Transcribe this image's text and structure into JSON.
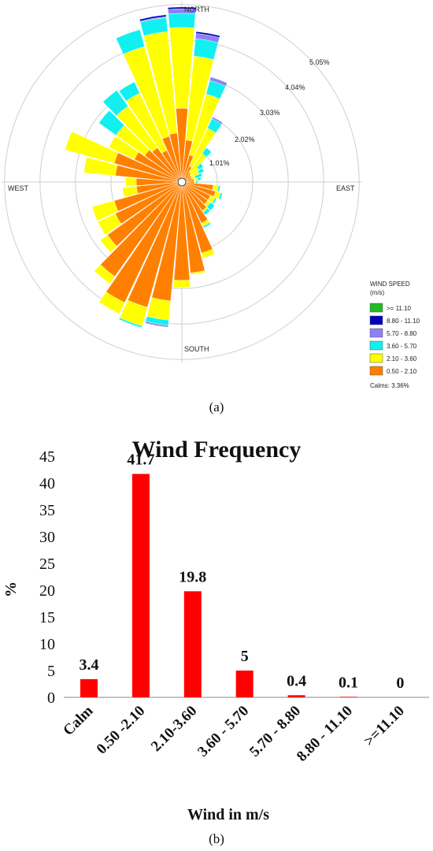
{
  "rose": {
    "directions": {
      "north": "NORTH",
      "south": "SOUTH",
      "east": "EAST",
      "west": "WEST"
    },
    "ring_labels": [
      "1.01%",
      "2.02%",
      "3.03%",
      "4.04%",
      "5.05%"
    ],
    "legend": {
      "title": "WIND SPEED",
      "unit": "(m/s)",
      "calms": "Calms: 3.36%",
      "entries": [
        {
          "label": ">= 11.10",
          "color": "#22bb22"
        },
        {
          "label": "8.80 - 11.10",
          "color": "#0000bb"
        },
        {
          "label": "5.70 - 8.80",
          "color": "#8c82f2"
        },
        {
          "label": "3.60 - 5.70",
          "color": "#11f0f0"
        },
        {
          "label": "2.10 - 3.60",
          "color": "#ffff00"
        },
        {
          "label": "0.50 - 2.10",
          "color": "#ff8000"
        }
      ]
    },
    "caption": "(a)"
  },
  "chart_data": [
    {
      "type": "wind-rose",
      "ring_values": [
        1.01,
        2.02,
        3.03,
        4.04,
        5.05
      ],
      "sector_bearings_deg": [
        0,
        10,
        20,
        30,
        40,
        50,
        60,
        70,
        80,
        90,
        100,
        110,
        120,
        130,
        140,
        150,
        160,
        170,
        180,
        190,
        200,
        210,
        220,
        230,
        240,
        250,
        260,
        270,
        280,
        290,
        300,
        310,
        320,
        330,
        340,
        350
      ],
      "bins": [
        "0.50 - 2.10",
        "2.10 - 3.60",
        "3.60 - 5.70",
        "5.70 - 8.80",
        "8.80 - 11.10",
        ">= 11.10"
      ],
      "cumulative_percent": [
        [
          2.1,
          4.4,
          4.8,
          4.93,
          4.98,
          4.98
        ],
        [
          1.2,
          3.6,
          4.1,
          4.25,
          4.3,
          4.3
        ],
        [
          0.8,
          2.6,
          3.0,
          3.1,
          3.1,
          3.1
        ],
        [
          0.5,
          1.7,
          2.0,
          2.05,
          2.05,
          2.05
        ],
        [
          0.35,
          1.0,
          1.2,
          1.2,
          1.2,
          1.2
        ],
        [
          0.3,
          0.6,
          0.75,
          0.75,
          0.75,
          0.75
        ],
        [
          0.3,
          0.55,
          0.7,
          0.7,
          0.7,
          0.7
        ],
        [
          0.3,
          0.4,
          0.6,
          0.6,
          0.6,
          0.6
        ],
        [
          0.35,
          0.45,
          0.55,
          0.55,
          0.55,
          0.55
        ],
        [
          0.35,
          0.4,
          0.45,
          0.45,
          0.45,
          0.45
        ],
        [
          0.9,
          1.05,
          1.1,
          1.1,
          1.1,
          1.1
        ],
        [
          1.0,
          1.15,
          1.2,
          1.2,
          1.2,
          1.2
        ],
        [
          0.9,
          1.05,
          1.1,
          1.1,
          1.1,
          1.1
        ],
        [
          0.9,
          1.0,
          1.15,
          1.15,
          1.15,
          1.15
        ],
        [
          1.0,
          1.05,
          1.15,
          1.15,
          1.15,
          1.15
        ],
        [
          1.3,
          1.4,
          1.45,
          1.45,
          1.45,
          1.45
        ],
        [
          2.1,
          2.25,
          2.25,
          2.25,
          2.25,
          2.25
        ],
        [
          2.6,
          2.65,
          2.65,
          2.65,
          2.65,
          2.65
        ],
        [
          2.8,
          3.0,
          3.0,
          3.0,
          3.0,
          3.0
        ],
        [
          3.4,
          3.95,
          4.1,
          4.15,
          4.15,
          4.15
        ],
        [
          3.7,
          4.25,
          4.3,
          4.3,
          4.3,
          4.3
        ],
        [
          3.8,
          4.15,
          4.15,
          4.15,
          4.15,
          4.15
        ],
        [
          3.3,
          3.55,
          3.55,
          3.55,
          3.55,
          3.55
        ],
        [
          2.6,
          2.85,
          2.85,
          2.85,
          2.85,
          2.85
        ],
        [
          2.1,
          2.65,
          2.65,
          2.65,
          2.65,
          2.65
        ],
        [
          2.0,
          2.65,
          2.65,
          2.65,
          2.65,
          2.65
        ],
        [
          1.3,
          1.7,
          1.7,
          1.7,
          1.7,
          1.7
        ],
        [
          1.3,
          1.6,
          1.6,
          1.6,
          1.6,
          1.6
        ],
        [
          1.9,
          2.8,
          2.8,
          2.8,
          2.8,
          2.8
        ],
        [
          2.0,
          3.45,
          3.45,
          3.45,
          3.45,
          3.45
        ],
        [
          1.5,
          2.3,
          2.3,
          2.3,
          2.3,
          2.3
        ],
        [
          1.3,
          2.3,
          2.9,
          2.9,
          2.9,
          2.9
        ],
        [
          1.2,
          2.65,
          3.2,
          3.2,
          3.2,
          3.2
        ],
        [
          1.0,
          2.8,
          3.15,
          3.15,
          3.15,
          3.15
        ],
        [
          1.35,
          4.0,
          4.5,
          4.5,
          4.5,
          4.5
        ],
        [
          1.4,
          4.3,
          4.7,
          4.73,
          4.78,
          4.78
        ]
      ]
    },
    {
      "type": "bar",
      "title": "Wind Frequency",
      "xlabel": "Wind in m/s",
      "ylabel": "%",
      "categories": [
        "Calm",
        "0.50 -2.10",
        "2.10-3.60",
        "3.60 - 5.70",
        "5.70 - 8.80",
        "8.80 - 11.10",
        ">=11.10"
      ],
      "values": [
        3.4,
        41.7,
        19.8,
        5,
        0.4,
        0.1,
        0
      ],
      "value_labels": [
        "3.4",
        "41.7",
        "19.8",
        "5",
        "0.4",
        "0.1",
        "0"
      ],
      "yticks": [
        "0",
        "5",
        "10",
        "15",
        "20",
        "25",
        "30",
        "35",
        "40",
        "45"
      ],
      "ylim": [
        0,
        45
      ],
      "grid": false,
      "bar_color": "#ff0000",
      "caption": "(b)"
    }
  ]
}
